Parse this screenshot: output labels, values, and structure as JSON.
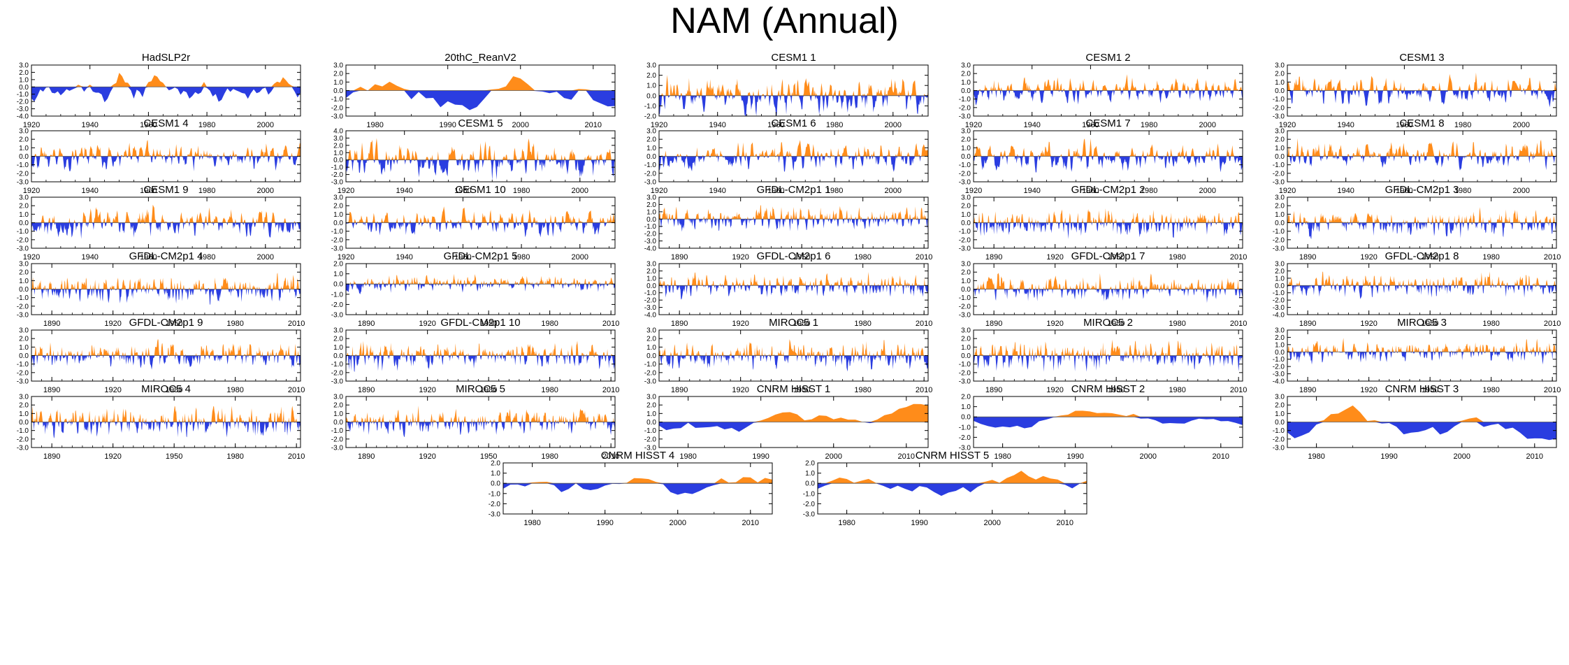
{
  "title": "NAM (Annual)",
  "colors": {
    "positive": "#ff8c1a",
    "negative": "#2a3de0",
    "axis": "#000000"
  },
  "chart_data": [
    {
      "type": "area",
      "title": "HadSLP2r",
      "x_range": [
        1920,
        2012
      ],
      "xticks": [
        "1920",
        "1940",
        "1960",
        "1980",
        "2000"
      ],
      "yticks": [
        "3.0",
        "2.0",
        "1.0",
        "0.0",
        "-1.0",
        "-2.0",
        "-3.0",
        "-4.0"
      ],
      "ylim": [
        -4,
        3
      ],
      "seed": 11,
      "amp": 1.1,
      "smooth": 2
    },
    {
      "type": "area",
      "title": "20thC_ReanV2",
      "x_range": [
        1976,
        2013
      ],
      "xticks": [
        "1980",
        "1990",
        "2000",
        "2010"
      ],
      "yticks": [
        "3.0",
        "2.0",
        "1.0",
        "0.0",
        "-1.0",
        "-2.0",
        "-3.0"
      ],
      "ylim": [
        -3,
        3
      ],
      "seed": 23,
      "amp": 1.2,
      "smooth": 3
    },
    {
      "type": "area",
      "title": "CESM1 1",
      "x_range": [
        1920,
        2012
      ],
      "xticks": [
        "1920",
        "1940",
        "1960",
        "1980",
        "2000"
      ],
      "yticks": [
        "3.0",
        "2.0",
        "1.0",
        "0.0",
        "-1.0",
        "-2.0"
      ],
      "ylim": [
        -2,
        3
      ],
      "seed": 31,
      "amp": 1.1,
      "smooth": 1
    },
    {
      "type": "area",
      "title": "CESM1 2",
      "x_range": [
        1920,
        2012
      ],
      "xticks": [
        "1920",
        "1940",
        "1960",
        "1980",
        "2000"
      ],
      "yticks": [
        "3.0",
        "2.0",
        "1.0",
        "0.0",
        "-1.0",
        "-2.0",
        "-3.0"
      ],
      "ylim": [
        -3,
        3
      ],
      "seed": 37,
      "amp": 1.0,
      "smooth": 1
    },
    {
      "type": "area",
      "title": "CESM1 3",
      "x_range": [
        1920,
        2012
      ],
      "xticks": [
        "1920",
        "1940",
        "1960",
        "1980",
        "2000"
      ],
      "yticks": [
        "3.0",
        "2.0",
        "1.0",
        "0.0",
        "-1.0",
        "-2.0",
        "-3.0"
      ],
      "ylim": [
        -3,
        3
      ],
      "seed": 41,
      "amp": 1.1,
      "smooth": 1
    },
    {
      "type": "area",
      "title": "CESM1 4",
      "x_range": [
        1920,
        2012
      ],
      "xticks": [
        "1920",
        "1940",
        "1960",
        "1980",
        "2000"
      ],
      "yticks": [
        "3.0",
        "2.0",
        "1.0",
        "0.0",
        "-1.0",
        "-2.0",
        "-3.0"
      ],
      "ylim": [
        -3,
        3
      ],
      "seed": 43,
      "amp": 1.0,
      "smooth": 1
    },
    {
      "type": "area",
      "title": "CESM1 5",
      "x_range": [
        1920,
        2012
      ],
      "xticks": [
        "1920",
        "1940",
        "1960",
        "1980",
        "2000"
      ],
      "yticks": [
        "4.0",
        "3.0",
        "2.0",
        "1.0",
        "0.0",
        "-1.0",
        "-2.0",
        "-3.0"
      ],
      "ylim": [
        -3,
        4
      ],
      "seed": 47,
      "amp": 1.1,
      "smooth": 1
    },
    {
      "type": "area",
      "title": "CESM1 6",
      "x_range": [
        1920,
        2012
      ],
      "xticks": [
        "1920",
        "1940",
        "1960",
        "1980",
        "2000"
      ],
      "yticks": [
        "3.0",
        "2.0",
        "1.0",
        "0.0",
        "-1.0",
        "-2.0",
        "-3.0"
      ],
      "ylim": [
        -3,
        3
      ],
      "seed": 53,
      "amp": 1.0,
      "smooth": 1
    },
    {
      "type": "area",
      "title": "CESM1 7",
      "x_range": [
        1920,
        2012
      ],
      "xticks": [
        "1920",
        "1940",
        "1960",
        "1980",
        "2000"
      ],
      "yticks": [
        "3.0",
        "2.0",
        "1.0",
        "0.0",
        "-1.0",
        "-2.0",
        "-3.0"
      ],
      "ylim": [
        -3,
        3
      ],
      "seed": 59,
      "amp": 1.1,
      "smooth": 1
    },
    {
      "type": "area",
      "title": "CESM1 8",
      "x_range": [
        1920,
        2012
      ],
      "xticks": [
        "1920",
        "1940",
        "1960",
        "1980",
        "2000"
      ],
      "yticks": [
        "3.0",
        "2.0",
        "1.0",
        "0.0",
        "-1.0",
        "-2.0",
        "-3.0"
      ],
      "ylim": [
        -3,
        3
      ],
      "seed": 61,
      "amp": 1.1,
      "smooth": 1
    },
    {
      "type": "area",
      "title": "CESM1 9",
      "x_range": [
        1920,
        2012
      ],
      "xticks": [
        "1920",
        "1940",
        "1960",
        "1980",
        "2000"
      ],
      "yticks": [
        "3.0",
        "2.0",
        "1.0",
        "0.0",
        "-1.0",
        "-2.0",
        "-3.0"
      ],
      "ylim": [
        -3,
        3
      ],
      "seed": 67,
      "amp": 1.1,
      "smooth": 1
    },
    {
      "type": "area",
      "title": "CESM1 10",
      "x_range": [
        1920,
        2012
      ],
      "xticks": [
        "1920",
        "1940",
        "1960",
        "1980",
        "2000"
      ],
      "yticks": [
        "3.0",
        "2.0",
        "1.0",
        "0.0",
        "-1.0",
        "-2.0",
        "-3.0"
      ],
      "ylim": [
        -3,
        3
      ],
      "seed": 71,
      "amp": 1.0,
      "smooth": 1
    },
    {
      "type": "area",
      "title": "GFDL-CM2p1 1",
      "x_range": [
        1880,
        2012
      ],
      "xticks": [
        "1890",
        "1920",
        "1950",
        "1980",
        "2010"
      ],
      "yticks": [
        "3.0",
        "2.0",
        "1.0",
        "0.0",
        "-1.0",
        "-2.0",
        "-3.0",
        "-4.0"
      ],
      "ylim": [
        -4,
        3
      ],
      "seed": 73,
      "amp": 1.0,
      "smooth": 1
    },
    {
      "type": "area",
      "title": "GFDL-CM2p1 2",
      "x_range": [
        1880,
        2012
      ],
      "xticks": [
        "1890",
        "1920",
        "1950",
        "1980",
        "2010"
      ],
      "yticks": [
        "3.0",
        "2.0",
        "1.0",
        "0.0",
        "-1.0",
        "-2.0",
        "-3.0"
      ],
      "ylim": [
        -3,
        3
      ],
      "seed": 79,
      "amp": 1.0,
      "smooth": 1
    },
    {
      "type": "area",
      "title": "GFDL-CM2p1 3",
      "x_range": [
        1880,
        2012
      ],
      "xticks": [
        "1890",
        "1920",
        "1950",
        "1980",
        "2010"
      ],
      "yticks": [
        "3.0",
        "2.0",
        "1.0",
        "0.0",
        "-1.0",
        "-2.0",
        "-3.0"
      ],
      "ylim": [
        -3,
        3
      ],
      "seed": 83,
      "amp": 1.0,
      "smooth": 1
    },
    {
      "type": "area",
      "title": "GFDL-CM2p1 4",
      "x_range": [
        1880,
        2012
      ],
      "xticks": [
        "1890",
        "1920",
        "1950",
        "1980",
        "2010"
      ],
      "yticks": [
        "3.0",
        "2.0",
        "1.0",
        "0.0",
        "-1.0",
        "-2.0",
        "-3.0"
      ],
      "ylim": [
        -3,
        3
      ],
      "seed": 89,
      "amp": 1.0,
      "smooth": 1
    },
    {
      "type": "area",
      "title": "GFDL-CM2p1 5",
      "x_range": [
        1880,
        2012
      ],
      "xticks": [
        "1890",
        "1920",
        "1950",
        "1980",
        "2010"
      ],
      "yticks": [
        "2.0",
        "1.0",
        "0.0",
        "-1.0",
        "-2.0",
        "-3.0"
      ],
      "ylim": [
        -3,
        2
      ],
      "seed": 97,
      "amp": 0.9,
      "smooth": 1
    },
    {
      "type": "area",
      "title": "GFDL-CM2p1 6",
      "x_range": [
        1880,
        2012
      ],
      "xticks": [
        "1890",
        "1920",
        "1950",
        "1980",
        "2010"
      ],
      "yticks": [
        "3.0",
        "2.0",
        "1.0",
        "0.0",
        "-1.0",
        "-2.0",
        "-3.0",
        "-4.0"
      ],
      "ylim": [
        -4,
        3
      ],
      "seed": 101,
      "amp": 1.0,
      "smooth": 1
    },
    {
      "type": "area",
      "title": "GFDL-CM2p1 7",
      "x_range": [
        1880,
        2012
      ],
      "xticks": [
        "1890",
        "1920",
        "1950",
        "1980",
        "2010"
      ],
      "yticks": [
        "3.0",
        "2.0",
        "1.0",
        "0.0",
        "-1.0",
        "-2.0",
        "-3.0"
      ],
      "ylim": [
        -3,
        3
      ],
      "seed": 103,
      "amp": 1.0,
      "smooth": 1
    },
    {
      "type": "area",
      "title": "GFDL-CM2p1 8",
      "x_range": [
        1880,
        2012
      ],
      "xticks": [
        "1890",
        "1920",
        "1950",
        "1980",
        "2010"
      ],
      "yticks": [
        "3.0",
        "2.0",
        "1.0",
        "0.0",
        "-1.0",
        "-2.0",
        "-3.0",
        "-4.0"
      ],
      "ylim": [
        -4,
        3
      ],
      "seed": 107,
      "amp": 1.0,
      "smooth": 1
    },
    {
      "type": "area",
      "title": "GFDL-CM2p1 9",
      "x_range": [
        1880,
        2012
      ],
      "xticks": [
        "1890",
        "1920",
        "1950",
        "1980",
        "2010"
      ],
      "yticks": [
        "3.0",
        "2.0",
        "1.0",
        "0.0",
        "-1.0",
        "-2.0",
        "-3.0"
      ],
      "ylim": [
        -3,
        3
      ],
      "seed": 109,
      "amp": 1.0,
      "smooth": 1
    },
    {
      "type": "area",
      "title": "GFDL-CM2p1 10",
      "x_range": [
        1880,
        2012
      ],
      "xticks": [
        "1890",
        "1920",
        "1950",
        "1980",
        "2010"
      ],
      "yticks": [
        "3.0",
        "2.0",
        "1.0",
        "0.0",
        "-1.0",
        "-2.0",
        "-3.0"
      ],
      "ylim": [
        -3,
        3
      ],
      "seed": 113,
      "amp": 1.0,
      "smooth": 1
    },
    {
      "type": "area",
      "title": "MIROC5 1",
      "x_range": [
        1880,
        2012
      ],
      "xticks": [
        "1890",
        "1920",
        "1950",
        "1980",
        "2010"
      ],
      "yticks": [
        "3.0",
        "2.0",
        "1.0",
        "0.0",
        "-1.0",
        "-2.0",
        "-3.0"
      ],
      "ylim": [
        -3,
        3
      ],
      "seed": 127,
      "amp": 1.0,
      "smooth": 1
    },
    {
      "type": "area",
      "title": "MIROC5 2",
      "x_range": [
        1880,
        2012
      ],
      "xticks": [
        "1890",
        "1920",
        "1950",
        "1980",
        "2010"
      ],
      "yticks": [
        "3.0",
        "2.0",
        "1.0",
        "0.0",
        "-1.0",
        "-2.0",
        "-3.0"
      ],
      "ylim": [
        -3,
        3
      ],
      "seed": 131,
      "amp": 1.0,
      "smooth": 1
    },
    {
      "type": "area",
      "title": "MIROC5 3",
      "x_range": [
        1880,
        2012
      ],
      "xticks": [
        "1890",
        "1920",
        "1950",
        "1980",
        "2010"
      ],
      "yticks": [
        "3.0",
        "2.0",
        "1.0",
        "0.0",
        "-1.0",
        "-2.0",
        "-3.0",
        "-4.0"
      ],
      "ylim": [
        -4,
        3
      ],
      "seed": 137,
      "amp": 1.0,
      "smooth": 1
    },
    {
      "type": "area",
      "title": "MIROC5 4",
      "x_range": [
        1880,
        2012
      ],
      "xticks": [
        "1890",
        "1920",
        "1950",
        "1980",
        "2010"
      ],
      "yticks": [
        "3.0",
        "2.0",
        "1.0",
        "0.0",
        "-1.0",
        "-2.0",
        "-3.0"
      ],
      "ylim": [
        -3,
        3
      ],
      "seed": 139,
      "amp": 1.0,
      "smooth": 1
    },
    {
      "type": "area",
      "title": "MIROC5 5",
      "x_range": [
        1880,
        2012
      ],
      "xticks": [
        "1890",
        "1920",
        "1950",
        "1980",
        "2010"
      ],
      "yticks": [
        "3.0",
        "2.0",
        "1.0",
        "0.0",
        "-1.0",
        "-2.0",
        "-3.0"
      ],
      "ylim": [
        -3,
        3
      ],
      "seed": 149,
      "amp": 1.0,
      "smooth": 1
    },
    {
      "type": "area",
      "title": "CNRM HISST 1",
      "x_range": [
        1976,
        2013
      ],
      "xticks": [
        "1980",
        "1990",
        "2000",
        "2010"
      ],
      "yticks": [
        "3.0",
        "2.0",
        "1.0",
        "0.0",
        "-1.0",
        "-2.0",
        "-3.0"
      ],
      "ylim": [
        -3,
        3
      ],
      "seed": 151,
      "amp": 1.1,
      "smooth": 3
    },
    {
      "type": "area",
      "title": "CNRM HISST 2",
      "x_range": [
        1976,
        2013
      ],
      "xticks": [
        "1980",
        "1990",
        "2000",
        "2010"
      ],
      "yticks": [
        "2.0",
        "1.0",
        "0.0",
        "-1.0",
        "-2.0",
        "-3.0"
      ],
      "ylim": [
        -3,
        2
      ],
      "seed": 157,
      "amp": 1.0,
      "smooth": 3
    },
    {
      "type": "area",
      "title": "CNRM HISST 3",
      "x_range": [
        1976,
        2013
      ],
      "xticks": [
        "1980",
        "1990",
        "2000",
        "2010"
      ],
      "yticks": [
        "3.0",
        "2.0",
        "1.0",
        "0.0",
        "-1.0",
        "-2.0",
        "-3.0"
      ],
      "ylim": [
        -3,
        3
      ],
      "seed": 163,
      "amp": 1.1,
      "smooth": 3
    },
    {
      "type": "area",
      "title": "CNRM HISST 4",
      "x_range": [
        1976,
        2013
      ],
      "xticks": [
        "1980",
        "1990",
        "2000",
        "2010"
      ],
      "yticks": [
        "2.0",
        "1.0",
        "0.0",
        "-1.0",
        "-2.0",
        "-3.0"
      ],
      "ylim": [
        -3,
        2
      ],
      "seed": 167,
      "amp": 1.0,
      "smooth": 3
    },
    {
      "type": "area",
      "title": "CNRM HISST 5",
      "x_range": [
        1976,
        2013
      ],
      "xticks": [
        "1980",
        "1990",
        "2000",
        "2010"
      ],
      "yticks": [
        "2.0",
        "1.0",
        "0.0",
        "-1.0",
        "-2.0",
        "-3.0"
      ],
      "ylim": [
        -3,
        2
      ],
      "seed": 173,
      "amp": 1.1,
      "smooth": 3
    }
  ]
}
